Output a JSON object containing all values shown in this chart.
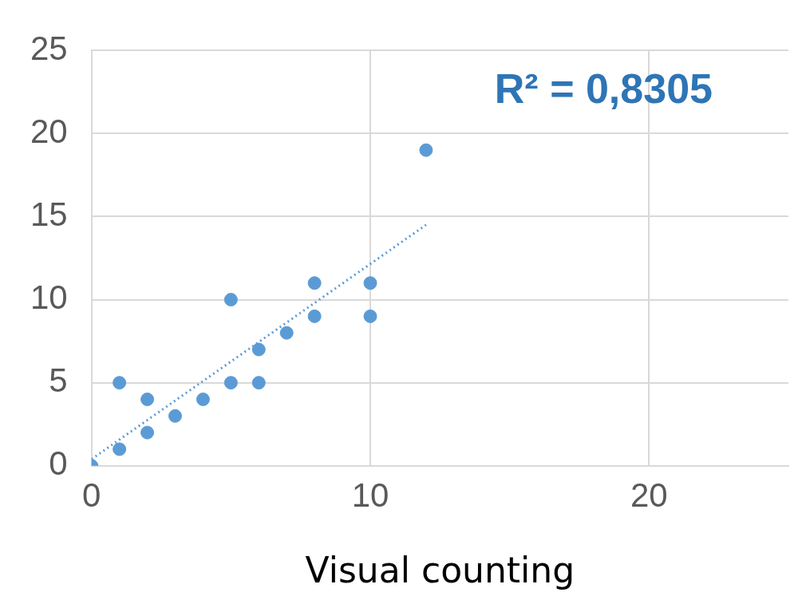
{
  "chart_data": {
    "type": "scatter",
    "xlabel": "Visual counting",
    "annotations": [
      "R² = 0,8305"
    ],
    "xlim": [
      0,
      25
    ],
    "xticks": [
      0,
      10,
      20
    ],
    "ylim": [
      0,
      25
    ],
    "yticks": [
      0,
      5,
      10,
      15,
      20,
      25
    ],
    "grid": true,
    "legend": false,
    "marker": "circle",
    "series": [
      {
        "type": "scatter",
        "color": "#5b9bd5",
        "x": [
          0,
          1,
          1,
          2,
          2,
          3,
          4,
          5,
          5,
          6,
          6,
          7,
          8,
          8,
          10,
          10,
          12
        ],
        "values": [
          0,
          1,
          5,
          2,
          4,
          3,
          4,
          5,
          10,
          5,
          7,
          8,
          9,
          11,
          9,
          11,
          19
        ]
      },
      {
        "type": "line",
        "color": "#5b9bd5",
        "line_style": "dotted",
        "marker": "none",
        "x": [
          0,
          12
        ],
        "values": [
          0.4,
          14.5
        ]
      }
    ]
  }
}
